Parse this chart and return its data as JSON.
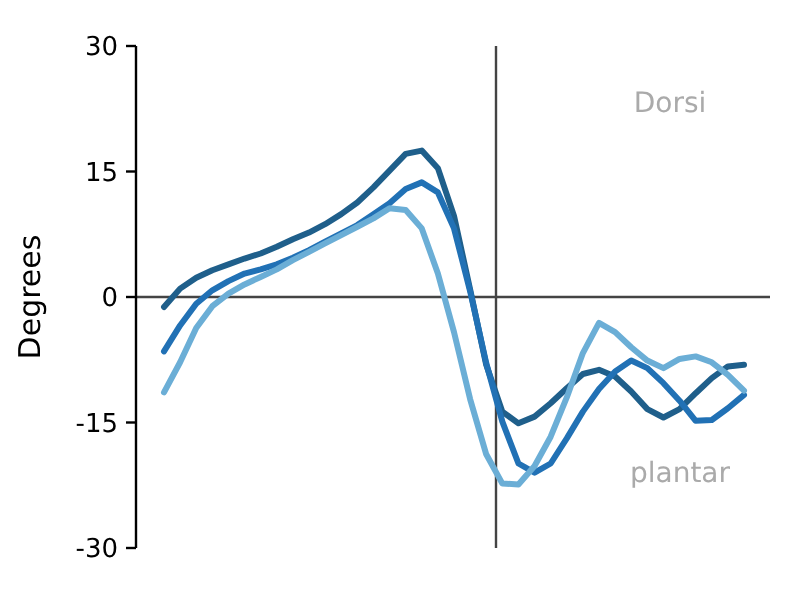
{
  "chart_data": {
    "type": "line",
    "ylabel": "Degrees",
    "categories": [
      null,
      null,
      null,
      null,
      null,
      null,
      null,
      null,
      null,
      null,
      null,
      null,
      null,
      null,
      null,
      null,
      null,
      null,
      null,
      null,
      null,
      null,
      null,
      null,
      null,
      null,
      null,
      null,
      null,
      null,
      null,
      null,
      null,
      null,
      null,
      null,
      null
    ],
    "ylim": [
      -30,
      30
    ],
    "yticks": [
      -30,
      -15,
      0,
      15,
      30
    ],
    "tick_labels": "y",
    "grid": false,
    "line_style": "solid",
    "annotations": [
      "Dorsi",
      "plantar"
    ],
    "ref_lines": [
      {
        "axis": "y",
        "value": 0,
        "color": "#444444"
      }
    ],
    "series": [
      {
        "color": "#1f5f8b",
        "values": [
          -1.2,
          1.0,
          2.3,
          3.2,
          3.9,
          4.6,
          5.2,
          6.0,
          6.9,
          7.7,
          8.7,
          9.9,
          11.3,
          13.1,
          15.1,
          17.1,
          17.5,
          15.4,
          9.7,
          0.9,
          -8.1,
          -13.7,
          -15.1,
          -14.3,
          -12.7,
          -10.9,
          -9.2,
          -8.7,
          -9.5,
          -11.3,
          -13.4,
          -14.4,
          -13.4,
          -11.5,
          -9.7,
          -8.3,
          -8.1
        ]
      },
      {
        "color": "#2171b5",
        "values": [
          -6.5,
          -3.4,
          -0.8,
          0.8,
          1.9,
          2.8,
          3.3,
          3.9,
          4.7,
          5.6,
          6.6,
          7.6,
          8.6,
          9.9,
          11.2,
          12.9,
          13.7,
          12.5,
          8.2,
          0.7,
          -7.9,
          -14.9,
          -19.9,
          -21.0,
          -19.9,
          -16.9,
          -13.7,
          -11.0,
          -8.9,
          -7.6,
          -8.5,
          -10.3,
          -12.4,
          -14.8,
          -14.7,
          -13.3,
          -11.7
        ]
      },
      {
        "color": "#6baed6",
        "values": [
          -11.4,
          -7.8,
          -3.7,
          -1.1,
          0.4,
          1.5,
          2.4,
          3.3,
          4.4,
          5.4,
          6.4,
          7.4,
          8.4,
          9.4,
          10.6,
          10.4,
          8.2,
          2.8,
          -4.2,
          -12.2,
          -18.8,
          -22.3,
          -22.4,
          -20.2,
          -16.7,
          -12.0,
          -6.7,
          -3.1,
          -4.2,
          -6.0,
          -7.6,
          -8.5,
          -7.4,
          -7.1,
          -7.8,
          -9.3,
          -11.2
        ]
      }
    ]
  }
}
